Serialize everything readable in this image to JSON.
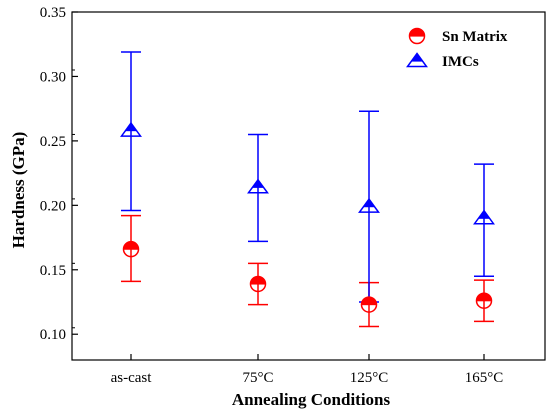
{
  "chart_data": {
    "type": "scatter",
    "xlabel": "Annealing Conditions",
    "ylabel": "Hardness (GPa)",
    "categories": [
      "as-cast",
      "75°C",
      "125°C",
      "165°C"
    ],
    "ylim": [
      0.08,
      0.35
    ],
    "yticks": [
      "0.10",
      "0.15",
      "0.20",
      "0.25",
      "0.30",
      "0.35"
    ],
    "legend_position": "top-right",
    "grid": false,
    "series": [
      {
        "name": "Sn Matrix",
        "marker": "half-filled-circle",
        "color": "#ff0000",
        "values": [
          0.166,
          0.139,
          0.123,
          0.126
        ],
        "lower": [
          0.141,
          0.123,
          0.106,
          0.11
        ],
        "upper": [
          0.192,
          0.155,
          0.14,
          0.142
        ]
      },
      {
        "name": "IMCs",
        "marker": "half-filled-triangle",
        "color": "#0000ff",
        "values": [
          0.258,
          0.214,
          0.199,
          0.19
        ],
        "lower": [
          0.196,
          0.172,
          0.125,
          0.145
        ],
        "upper": [
          0.319,
          0.255,
          0.273,
          0.232
        ]
      }
    ]
  }
}
